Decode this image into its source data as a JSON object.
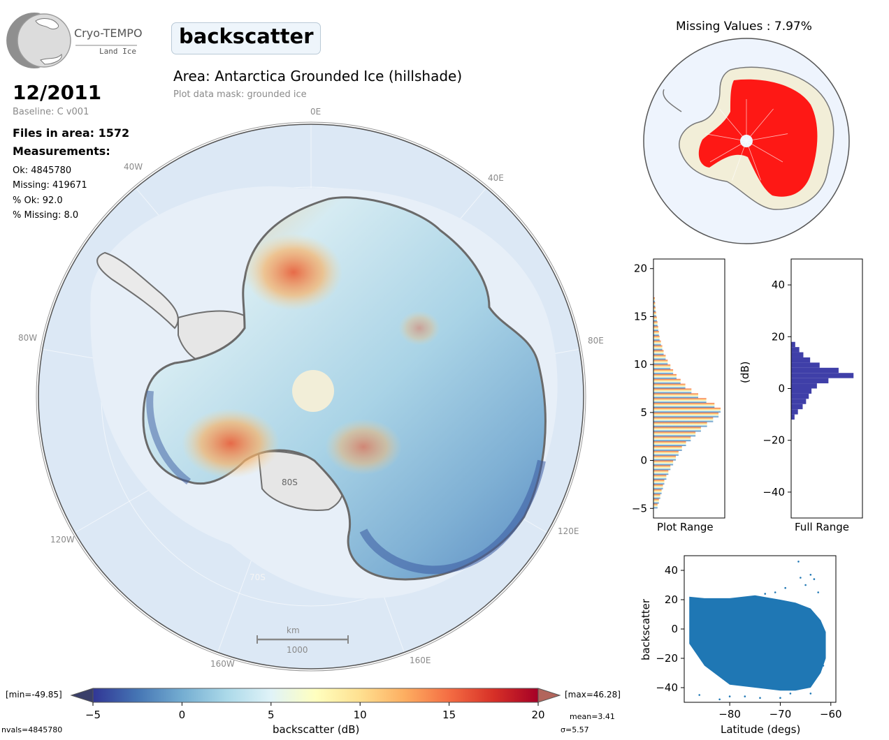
{
  "logo": {
    "name": "Cryo-TEMPO",
    "sub": "Land Ice"
  },
  "header": {
    "parameter": "backscatter",
    "area": "Area: Antarctica Grounded Ice (hillshade)",
    "mask": "Plot data mask: grounded ice"
  },
  "info": {
    "date": "12/2011",
    "baseline": "Baseline: C v001",
    "files": "Files in area: 1572",
    "measurements_title": "Measurements:",
    "ok": "Ok: 4845780",
    "missing": "Missing: 419671",
    "pct_ok": "% Ok: 92.0",
    "pct_missing": "% Missing: 8.0"
  },
  "map": {
    "lon_labels": {
      "n": "0E",
      "nw": "40W",
      "ne": "40E",
      "w": "80W",
      "e": "80E",
      "sw": "120W",
      "se": "120E",
      "ssw": "160W",
      "sse": "160E"
    },
    "lat_labels": {
      "lat80": "80S",
      "lat70": "70S"
    },
    "scalebar_unit": "km",
    "scalebar_value": "1000",
    "ocean_color": "#dce8f5",
    "ice_shelf_color": "#e9e9e9"
  },
  "missing_map": {
    "title": "Missing Values : 7.97%",
    "missing_color": "#ff0000",
    "ok_color": "#f2eed8"
  },
  "colorbar": {
    "min_label": "[min=-49.85]",
    "max_label": "[max=46.28]",
    "ticks": [
      "−5",
      "0",
      "5",
      "10",
      "15",
      "20"
    ],
    "label": "backscatter (dB)",
    "mean": "mean=3.41",
    "sigma": "σ=5.57",
    "nvals": "nvals=4845780",
    "colors": [
      "#313695",
      "#4575b4",
      "#74add1",
      "#abd9e9",
      "#e0f3f8",
      "#ffffbf",
      "#fee090",
      "#fdae61",
      "#f46d43",
      "#d73027",
      "#a50026"
    ]
  },
  "chart_data": [
    {
      "type": "bar",
      "title": "",
      "xlabel": "Plot Range",
      "ylabel": "",
      "orientation": "horizontal",
      "ylim": [
        -6,
        21
      ],
      "yticks": [
        "−5",
        "0",
        "5",
        "10",
        "15",
        "20"
      ],
      "bins": [
        -5,
        -4.5,
        -4,
        -3.5,
        -3,
        -2.5,
        -2,
        -1.5,
        -1,
        -0.5,
        0,
        0.5,
        1,
        1.5,
        2,
        2.5,
        3,
        3.5,
        4,
        4.5,
        5,
        5.5,
        6,
        6.5,
        7,
        7.5,
        8,
        8.5,
        9,
        9.5,
        10,
        10.5,
        11,
        11.5,
        12,
        12.5,
        13,
        13.5,
        14,
        14.5,
        15,
        15.5,
        16,
        16.5
      ],
      "values": [
        0.06,
        0.08,
        0.1,
        0.12,
        0.14,
        0.16,
        0.19,
        0.22,
        0.25,
        0.29,
        0.33,
        0.37,
        0.42,
        0.48,
        0.55,
        0.62,
        0.7,
        0.79,
        0.88,
        0.96,
        0.99,
        0.9,
        0.78,
        0.66,
        0.56,
        0.47,
        0.4,
        0.34,
        0.29,
        0.25,
        0.21,
        0.18,
        0.15,
        0.13,
        0.11,
        0.09,
        0.08,
        0.07,
        0.06,
        0.05,
        0.04,
        0.03,
        0.025,
        0.02
      ]
    },
    {
      "type": "bar",
      "title": "",
      "xlabel": "Full Range",
      "ylabel": "(dB)",
      "orientation": "horizontal",
      "ylim": [
        -50,
        50
      ],
      "yticks": [
        "−40",
        "−20",
        "0",
        "20",
        "40"
      ],
      "bins": [
        -12,
        -10,
        -8,
        -6,
        -4,
        -2,
        0,
        2,
        4,
        6,
        8,
        10,
        12,
        14,
        16
      ],
      "values": [
        0.05,
        0.1,
        0.17,
        0.22,
        0.26,
        0.3,
        0.38,
        0.55,
        0.92,
        0.7,
        0.42,
        0.28,
        0.18,
        0.12,
        0.06
      ]
    },
    {
      "type": "scatter",
      "title": "",
      "xlabel": "Latitude (degs)",
      "ylabel": "backscatter",
      "xlim": [
        -89,
        -59
      ],
      "ylim": [
        -50,
        50
      ],
      "xticks": [
        "−80",
        "−70",
        "−60"
      ],
      "yticks": [
        "−40",
        "−20",
        "0",
        "20",
        "40"
      ],
      "color": "#1f77b4",
      "band": {
        "x": [
          -88,
          -85,
          -80,
          -75,
          -70,
          -67,
          -64,
          -62,
          -61
        ],
        "upper": [
          22,
          21,
          21,
          23,
          20,
          18,
          14,
          6,
          -2
        ],
        "lower": [
          -10,
          -25,
          -38,
          -40,
          -42,
          -42,
          -40,
          -30,
          -20
        ]
      },
      "outliers": [
        [
          -66.4,
          46
        ],
        [
          -64,
          37
        ],
        [
          -63.3,
          34
        ],
        [
          -65,
          30
        ],
        [
          -62.5,
          25
        ],
        [
          -86,
          -45
        ],
        [
          -82,
          -48
        ],
        [
          -80,
          -46
        ],
        [
          -77,
          -46
        ],
        [
          -74,
          -47
        ],
        [
          -70,
          -47
        ],
        [
          -68,
          -44
        ],
        [
          -64,
          -44
        ],
        [
          -61.5,
          -25
        ],
        [
          -71,
          25
        ],
        [
          -73,
          24
        ],
        [
          -69,
          28
        ],
        [
          -66,
          35
        ]
      ]
    }
  ]
}
